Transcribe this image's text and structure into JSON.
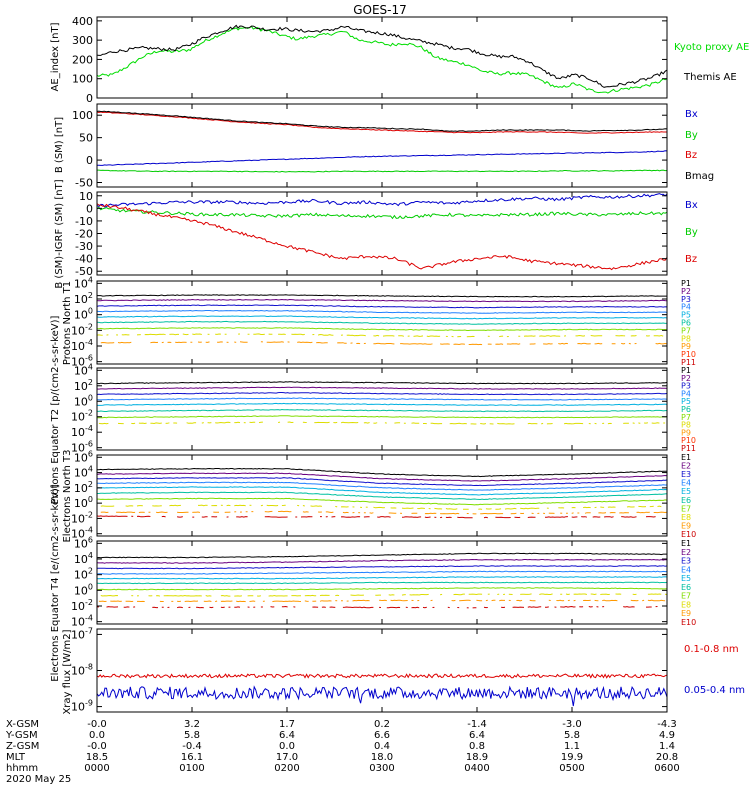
{
  "title": "GOES-17",
  "date_label": "2020 May 25",
  "chart_data": [
    {
      "type": "line",
      "panel": "ae",
      "ylabel": "AE_index [nT]",
      "ylim": [
        0,
        420
      ],
      "ticks": [
        "0",
        "100",
        "200",
        "300",
        "400"
      ],
      "tick_values": [
        0,
        100,
        200,
        300,
        400
      ],
      "log": false,
      "series": [
        {
          "name": "Kyoto proxy AE",
          "color": "#00dd00",
          "values": [
            115,
            120,
            165,
            215,
            245,
            240,
            250,
            295,
            330,
            360,
            365,
            350,
            325,
            305,
            320,
            330,
            345,
            300,
            290,
            275,
            285,
            265,
            210,
            190,
            175,
            140,
            125,
            130,
            120,
            85,
            50,
            75,
            40,
            30,
            45,
            55,
            70,
            100
          ]
        },
        {
          "name": "Themis AE",
          "color": "#000000",
          "values": [
            215,
            240,
            250,
            260,
            255,
            250,
            275,
            315,
            345,
            370,
            370,
            355,
            360,
            350,
            345,
            350,
            370,
            350,
            340,
            330,
            310,
            295,
            280,
            260,
            255,
            230,
            215,
            215,
            190,
            140,
            100,
            120,
            100,
            55,
            70,
            85,
            105,
            140
          ]
        }
      ]
    },
    {
      "type": "line",
      "panel": "bsm",
      "ylabel": "B (SM) [nT]",
      "ylim": [
        -60,
        125
      ],
      "ticks": [
        "-50",
        "0",
        "50",
        "100"
      ],
      "tick_values": [
        -50,
        0,
        50,
        100
      ],
      "log": false,
      "series": [
        {
          "name": "Bx",
          "color": "#0000cc",
          "values": [
            -12,
            -10,
            -8,
            -6,
            -4,
            -2,
            0,
            2,
            4,
            6,
            8,
            9,
            10,
            11,
            12,
            13,
            14,
            15,
            16,
            17,
            18,
            20
          ]
        },
        {
          "name": "By",
          "color": "#00cc00",
          "values": [
            -23,
            -24,
            -25,
            -25,
            -25,
            -25,
            -26,
            -26,
            -26,
            -25,
            -25,
            -25,
            -25,
            -25,
            -25,
            -25,
            -25,
            -24,
            -24,
            -24,
            -23,
            -23
          ]
        },
        {
          "name": "Bz",
          "color": "#dd0000",
          "values": [
            107,
            104,
            100,
            96,
            91,
            86,
            82,
            79,
            73,
            70,
            68,
            66,
            64,
            62,
            61,
            63,
            63,
            62,
            60,
            61,
            62,
            63
          ]
        },
        {
          "name": "Bmag",
          "color": "#000000",
          "values": [
            109,
            106,
            102,
            98,
            93,
            88,
            84,
            81,
            76,
            73,
            72,
            70,
            69,
            64,
            65,
            67,
            67,
            67,
            65,
            66,
            67,
            69
          ]
        }
      ]
    },
    {
      "type": "line",
      "panel": "bigrf",
      "ylabel": "B (SM)-IGRF (SM) [nT]",
      "ylim": [
        -53,
        13
      ],
      "ticks": [
        "-50",
        "-40",
        "-30",
        "-20",
        "-10",
        "0",
        "10"
      ],
      "tick_values": [
        -50,
        -40,
        -30,
        -20,
        -10,
        0,
        10
      ],
      "log": false,
      "series": [
        {
          "name": "Bx",
          "color": "#0000cc",
          "values": [
            2,
            3,
            4,
            5,
            5,
            5,
            4,
            5,
            6,
            4,
            5,
            3,
            5,
            4,
            6,
            7,
            8,
            7,
            9,
            9,
            10,
            11
          ]
        },
        {
          "name": "By",
          "color": "#00cc00",
          "values": [
            0,
            -2,
            -3,
            -4,
            -5,
            -5,
            -6,
            -6,
            -5,
            -6,
            -6,
            -7,
            -6,
            -5,
            -6,
            -5,
            -5,
            -4,
            -5,
            -5,
            -4,
            -4
          ]
        },
        {
          "name": "Bz",
          "color": "#dd0000",
          "values": [
            3,
            0,
            -4,
            -8,
            -12,
            -18,
            -24,
            -30,
            -35,
            -40,
            -38,
            -40,
            -48,
            -43,
            -40,
            -38,
            -42,
            -44,
            -46,
            -48,
            -44,
            -40
          ]
        }
      ]
    },
    {
      "type": "line",
      "panel": "pnorth",
      "ylabel": "Protons North T1",
      "ylim": [
        -6.3,
        4.3
      ],
      "log": true,
      "ticks": [
        "10^4",
        "10^2",
        "10^0",
        "10^-2",
        "10^-4",
        "10^-6"
      ],
      "tick_values": [
        4,
        2,
        0,
        -2,
        -4,
        -6
      ],
      "series": [
        {
          "name": "P1",
          "color": "#000000",
          "log10": [
            2.4,
            2.5,
            2.5,
            2.4,
            2.3,
            2.3,
            2.4
          ]
        },
        {
          "name": "P2",
          "color": "#6a0080",
          "log10": [
            1.8,
            1.9,
            1.9,
            1.8,
            1.7,
            1.7,
            1.8
          ]
        },
        {
          "name": "P3",
          "color": "#1010cc",
          "log10": [
            1.1,
            1.2,
            1.2,
            1.0,
            0.9,
            1.0,
            1.0
          ]
        },
        {
          "name": "P4",
          "color": "#2080ff",
          "log10": [
            0.4,
            0.5,
            0.5,
            0.3,
            0.2,
            0.3,
            0.3
          ]
        },
        {
          "name": "P5",
          "color": "#00b0e0",
          "log10": [
            -0.3,
            -0.2,
            -0.2,
            -0.4,
            -0.5,
            -0.4,
            -0.4
          ]
        },
        {
          "name": "P6",
          "color": "#00c0a0",
          "log10": [
            -1.0,
            -0.9,
            -0.9,
            -1.1,
            -1.2,
            -1.1,
            -1.1
          ]
        },
        {
          "name": "P7",
          "color": "#80dd00",
          "log10": [
            -1.8,
            -1.7,
            -1.7,
            -1.9,
            -2.0,
            -1.9,
            -1.9
          ]
        },
        {
          "name": "P8",
          "color": "#dddd00",
          "log10": [
            -2.6,
            -2.5,
            -2.5,
            -2.7,
            -2.8,
            -2.7,
            -2.7
          ]
        },
        {
          "name": "P9",
          "color": "#ff9900",
          "log10": [
            -3.6,
            -3.5,
            -3.5,
            -3.7,
            -3.8,
            -3.7,
            -3.7
          ]
        },
        {
          "name": "P10",
          "color": "#ff3300",
          "log10": []
        },
        {
          "name": "P11",
          "color": "#cc0000",
          "log10": []
        }
      ]
    },
    {
      "type": "line",
      "panel": "peq",
      "ylabel": "Protons Equator T2 [p/(cm2-s-sr-keV)]",
      "ylim": [
        -6.3,
        4.3
      ],
      "log": true,
      "ticks": [
        "10^4",
        "10^2",
        "10^0",
        "10^-2",
        "10^-4",
        "10^-6"
      ],
      "tick_values": [
        4,
        2,
        0,
        -2,
        -4,
        -6
      ],
      "series": [
        {
          "name": "P1",
          "color": "#000000",
          "log10": [
            2.3,
            2.4,
            2.5,
            2.4,
            2.3,
            2.3,
            2.4
          ]
        },
        {
          "name": "P2",
          "color": "#6a0080",
          "log10": [
            1.6,
            1.7,
            1.8,
            1.7,
            1.6,
            1.6,
            1.7
          ]
        },
        {
          "name": "P3",
          "color": "#1010cc",
          "log10": [
            0.9,
            1.0,
            1.1,
            1.0,
            0.9,
            0.9,
            1.0
          ]
        },
        {
          "name": "P4",
          "color": "#2080ff",
          "log10": [
            0.2,
            0.3,
            0.4,
            0.3,
            0.2,
            0.2,
            0.3
          ]
        },
        {
          "name": "P5",
          "color": "#00b0e0",
          "log10": [
            -0.5,
            -0.4,
            -0.3,
            -0.4,
            -0.5,
            -0.5,
            -0.4
          ]
        },
        {
          "name": "P6",
          "color": "#00c0a0",
          "log10": [
            -1.3,
            -1.2,
            -1.1,
            -1.2,
            -1.3,
            -1.3,
            -1.2
          ]
        },
        {
          "name": "P7",
          "color": "#80dd00",
          "log10": [
            -2.1,
            -2.0,
            -1.9,
            -2.0,
            -2.1,
            -2.1,
            -2.0
          ]
        },
        {
          "name": "P8",
          "color": "#dddd00",
          "log10": [
            -2.9,
            -2.8,
            -2.7,
            -2.8,
            -2.9,
            -2.9,
            -2.8
          ]
        },
        {
          "name": "P9",
          "color": "#ff9900",
          "log10": []
        },
        {
          "name": "P10",
          "color": "#ff3300",
          "log10": []
        },
        {
          "name": "P11",
          "color": "#cc0000",
          "log10": []
        }
      ]
    },
    {
      "type": "line",
      "panel": "enorth",
      "ylabel": "Electrons North T3",
      "ylim": [
        -4.3,
        6.3
      ],
      "log": true,
      "ticks": [
        "10^6",
        "10^4",
        "10^2",
        "10^0",
        "10^-2",
        "10^-4"
      ],
      "tick_values": [
        6,
        4,
        2,
        0,
        -2,
        -4
      ],
      "series": [
        {
          "name": "E1",
          "color": "#000000",
          "log10": [
            4.4,
            4.5,
            4.5,
            3.8,
            3.5,
            3.8,
            4.2
          ]
        },
        {
          "name": "E2",
          "color": "#6a0080",
          "log10": [
            3.8,
            3.9,
            3.9,
            3.2,
            2.9,
            3.2,
            3.6
          ]
        },
        {
          "name": "E3",
          "color": "#1010cc",
          "log10": [
            3.2,
            3.3,
            3.3,
            2.6,
            2.3,
            2.6,
            3.0
          ]
        },
        {
          "name": "E4",
          "color": "#2080ff",
          "log10": [
            2.6,
            2.7,
            2.7,
            2.0,
            1.7,
            2.0,
            2.4
          ]
        },
        {
          "name": "E5",
          "color": "#00b0e0",
          "log10": [
            2.0,
            2.1,
            2.1,
            1.4,
            1.1,
            1.4,
            1.8
          ]
        },
        {
          "name": "E6",
          "color": "#00c0a0",
          "log10": [
            1.3,
            1.4,
            1.4,
            0.8,
            0.5,
            0.8,
            1.2
          ]
        },
        {
          "name": "E7",
          "color": "#80dd00",
          "log10": [
            0.5,
            0.6,
            0.6,
            0.1,
            -0.2,
            0.1,
            0.4
          ]
        },
        {
          "name": "E8",
          "color": "#dddd00",
          "log10": [
            -0.4,
            -0.3,
            -0.3,
            -0.6,
            -0.8,
            -0.6,
            -0.4
          ]
        },
        {
          "name": "E9",
          "color": "#ff9900",
          "log10": [
            -1.2,
            -1.2,
            -1.1,
            -1.3,
            -1.4,
            -1.3,
            -1.2
          ]
        },
        {
          "name": "E10",
          "color": "#cc0000",
          "log10": [
            -1.7,
            -1.8,
            -1.8,
            -1.8,
            -1.9,
            -1.8,
            -1.8
          ]
        }
      ]
    },
    {
      "type": "line",
      "panel": "eeq",
      "ylabel": "Electrons Equator T4 [e/(cm2-s-sr-keV)]",
      "ylim": [
        -4.3,
        6.3
      ],
      "log": true,
      "ticks": [
        "10^6",
        "10^4",
        "10^2",
        "10^0",
        "10^-2",
        "10^-4"
      ],
      "tick_values": [
        6,
        4,
        2,
        0,
        -2,
        -4
      ],
      "series": [
        {
          "name": "E1",
          "color": "#000000",
          "log10": [
            4.2,
            4.2,
            4.3,
            4.5,
            4.7,
            4.7,
            4.6
          ]
        },
        {
          "name": "E2",
          "color": "#6a0080",
          "log10": [
            3.5,
            3.5,
            3.6,
            3.8,
            3.9,
            3.9,
            3.9
          ]
        },
        {
          "name": "E3",
          "color": "#1010cc",
          "log10": [
            2.8,
            2.8,
            2.9,
            3.0,
            3.1,
            3.1,
            3.1
          ]
        },
        {
          "name": "E4",
          "color": "#2080ff",
          "log10": [
            2.1,
            2.1,
            2.2,
            2.3,
            2.4,
            2.4,
            2.4
          ]
        },
        {
          "name": "E5",
          "color": "#00b0e0",
          "log10": [
            1.5,
            1.5,
            1.5,
            1.6,
            1.7,
            1.7,
            1.7
          ]
        },
        {
          "name": "E6",
          "color": "#00c0a0",
          "log10": [
            0.9,
            0.9,
            0.9,
            1.0,
            1.0,
            1.0,
            1.0
          ]
        },
        {
          "name": "E7",
          "color": "#80dd00",
          "log10": [
            0.1,
            0.1,
            0.1,
            0.2,
            0.3,
            0.3,
            0.2
          ]
        },
        {
          "name": "E8",
          "color": "#dddd00",
          "log10": [
            -0.7,
            -0.7,
            -0.7,
            -0.6,
            -0.5,
            -0.5,
            -0.5
          ]
        },
        {
          "name": "E9",
          "color": "#ff9900",
          "log10": [
            -1.4,
            -1.4,
            -1.4,
            -1.3,
            -1.3,
            -1.3,
            -1.3
          ]
        },
        {
          "name": "E10",
          "color": "#cc0000",
          "log10": [
            -2.1,
            -2.2,
            -2.1,
            -2.2,
            -2.2,
            -2.1,
            -2.1
          ]
        }
      ]
    },
    {
      "type": "line",
      "panel": "xray",
      "ylabel": "Xray flux [W/m2]",
      "ylim": [
        -9.15,
        -6.85
      ],
      "log": true,
      "ticks": [
        "10^-7",
        "10^-8",
        "10^-9"
      ],
      "tick_values": [
        -7,
        -8,
        -9
      ],
      "series": [
        {
          "name": "0.1-0.8 nm",
          "color": "#dd0000",
          "log10_mean": -8.15,
          "noise": 0.05
        },
        {
          "name": "0.05-0.4 nm",
          "color": "#0000cc",
          "log10_mean": -8.62,
          "noise": 0.17
        }
      ]
    }
  ],
  "orbit_table": {
    "row_labels": [
      "X-GSM",
      "Y-GSM",
      "Z-GSM",
      "MLT",
      "hhmm"
    ],
    "columns": [
      [
        "-0.0",
        "0.0",
        "-0.0",
        "18.5",
        "0000"
      ],
      [
        "3.2",
        "5.8",
        "-0.4",
        "16.1",
        "0100"
      ],
      [
        "1.7",
        "6.4",
        "0.0",
        "17.0",
        "0200"
      ],
      [
        "0.2",
        "6.6",
        "0.4",
        "18.0",
        "0300"
      ],
      [
        "-1.4",
        "6.4",
        "0.8",
        "18.9",
        "0400"
      ],
      [
        "-3.0",
        "5.8",
        "1.1",
        "19.9",
        "0500"
      ],
      [
        "-4.3",
        "4.9",
        "1.4",
        "20.8",
        "0600"
      ]
    ]
  }
}
